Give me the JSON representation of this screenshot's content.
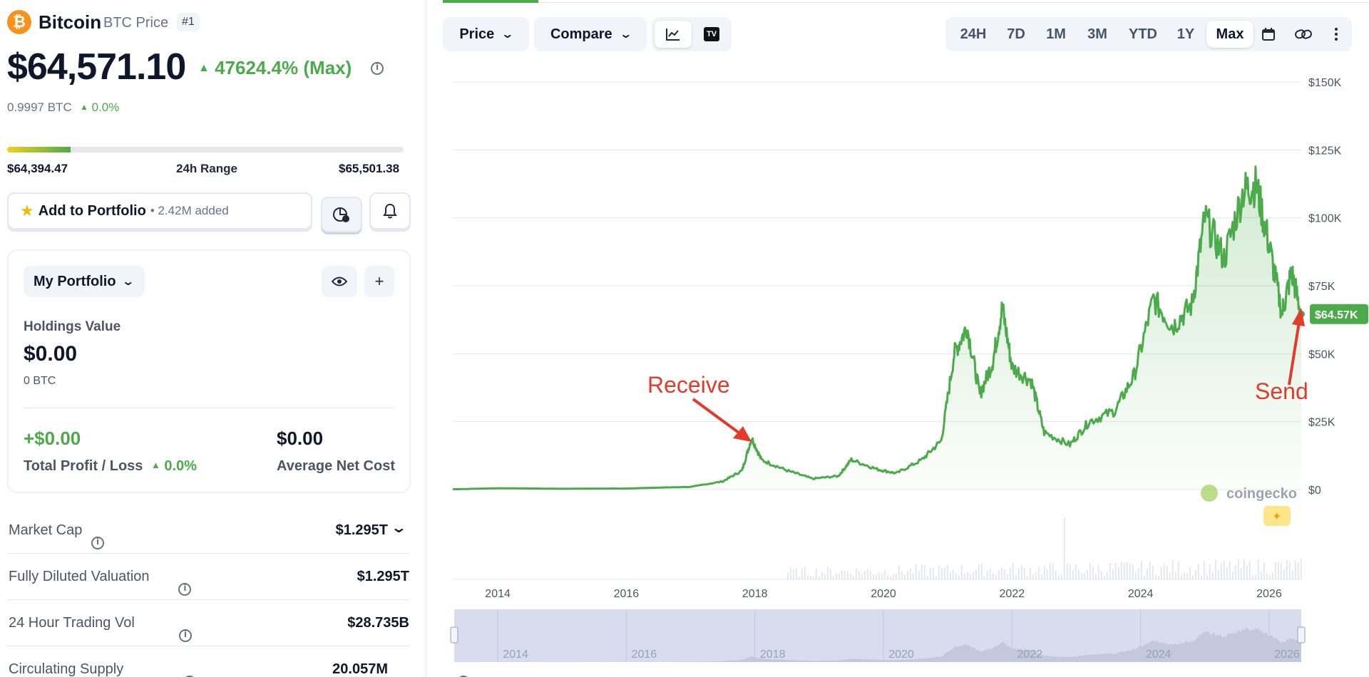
{
  "coin": {
    "name": "Bitcoin",
    "price_label": "BTC Price",
    "rank": "#1",
    "price": "$64,571.10",
    "change": "47624.4% (Max)",
    "btc_value": "0.9997 BTC",
    "btc_change": "0.0%"
  },
  "range": {
    "low": "$64,394.47",
    "label": "24h Range",
    "high": "$65,501.38",
    "fill_fraction": 0.16
  },
  "portfolio_actions": {
    "add_label": "Add to Portfolio",
    "added": "• 2.42M added"
  },
  "portfolio": {
    "selector": "My Portfolio",
    "holdings_label": "Holdings Value",
    "holdings_value": "$0.00",
    "holdings_btc": "0 BTC",
    "pnl_value": "+$0.00",
    "pnl_label": "Total Profit / Loss",
    "pnl_change": "0.0%",
    "avg_cost_value": "$0.00",
    "avg_cost_label": "Average Net Cost"
  },
  "stats": [
    {
      "label": "Market Cap",
      "value": "$1.295T"
    },
    {
      "label": "Fully Diluted Valuation",
      "value": "$1.295T"
    },
    {
      "label": "24 Hour Trading Vol",
      "value": "$28.735B"
    },
    {
      "label": "Circulating Supply",
      "value": "20.057M"
    }
  ],
  "toolbar": {
    "price_dropdown": "Price",
    "compare_dropdown": "Compare",
    "ranges": [
      "24H",
      "7D",
      "1M",
      "3M",
      "YTD",
      "1Y",
      "Max"
    ],
    "active_range": "Max"
  },
  "chart_data": {
    "type": "line",
    "y_ticks": [
      "$150K",
      "$125K",
      "$100K",
      "$75K",
      "$50K",
      "$25K",
      "$0"
    ],
    "x_ticks": [
      "2014",
      "2016",
      "2018",
      "2020",
      "2022",
      "2024",
      "2026"
    ],
    "ylim": [
      0,
      150000
    ],
    "current_label": "$64.57K",
    "watermark": "coingecko",
    "x": [
      2013.3,
      2014.0,
      2015.0,
      2016.0,
      2017.0,
      2017.5,
      2017.8,
      2017.95,
      2018.1,
      2018.5,
      2018.9,
      2019.3,
      2019.5,
      2019.9,
      2020.2,
      2020.6,
      2020.9,
      2021.1,
      2021.3,
      2021.5,
      2021.7,
      2021.85,
      2022.0,
      2022.3,
      2022.5,
      2022.9,
      2023.2,
      2023.6,
      2023.9,
      2024.2,
      2024.5,
      2024.8,
      2025.0,
      2025.3,
      2025.6,
      2025.8,
      2026.0,
      2026.2,
      2026.35,
      2026.5
    ],
    "y": [
      100,
      500,
      300,
      400,
      1000,
      3000,
      7000,
      19000,
      11000,
      7000,
      4000,
      5000,
      11000,
      7500,
      6000,
      11000,
      18000,
      50000,
      60000,
      35000,
      47000,
      67000,
      45000,
      40000,
      21000,
      16500,
      25000,
      29000,
      42000,
      70000,
      60000,
      68000,
      100000,
      85000,
      110000,
      112000,
      90000,
      65000,
      80000,
      64571
    ],
    "annotations": [
      "Receive",
      "Send"
    ]
  }
}
